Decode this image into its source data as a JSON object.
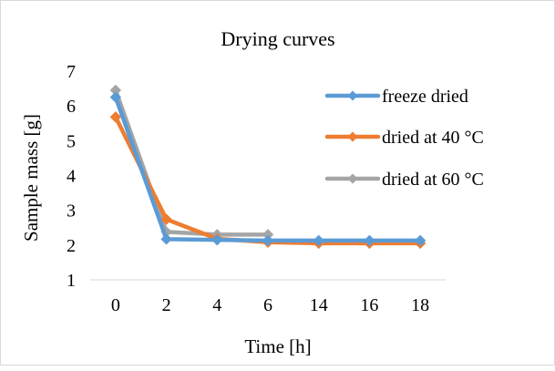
{
  "chart_data": {
    "type": "line",
    "title": "Drying curves",
    "xlabel": "Time [h]",
    "ylabel": "Sample mass [g]",
    "categories": [
      "0",
      "2",
      "4",
      "6",
      "14",
      "16",
      "18"
    ],
    "ylim": [
      1,
      7
    ],
    "yticks": [
      "1",
      "2",
      "3",
      "4",
      "5",
      "6",
      "7"
    ],
    "grid": false,
    "legend_position": "right",
    "series": [
      {
        "name": "freeze dried",
        "color": "#5b9bd5",
        "marker": "diamond",
        "values": [
          6.25,
          2.17,
          2.15,
          2.13,
          2.13,
          2.13,
          2.13
        ]
      },
      {
        "name": "dried at 40 °C",
        "color": "#ed7d31",
        "marker": "diamond",
        "values": [
          5.68,
          2.74,
          2.18,
          2.08,
          2.05,
          2.05,
          2.05
        ]
      },
      {
        "name": "dried at 60 °C",
        "color": "#a5a5a5",
        "marker": "diamond",
        "values": [
          6.45,
          2.38,
          2.3,
          2.3,
          null,
          null,
          null
        ]
      }
    ]
  }
}
